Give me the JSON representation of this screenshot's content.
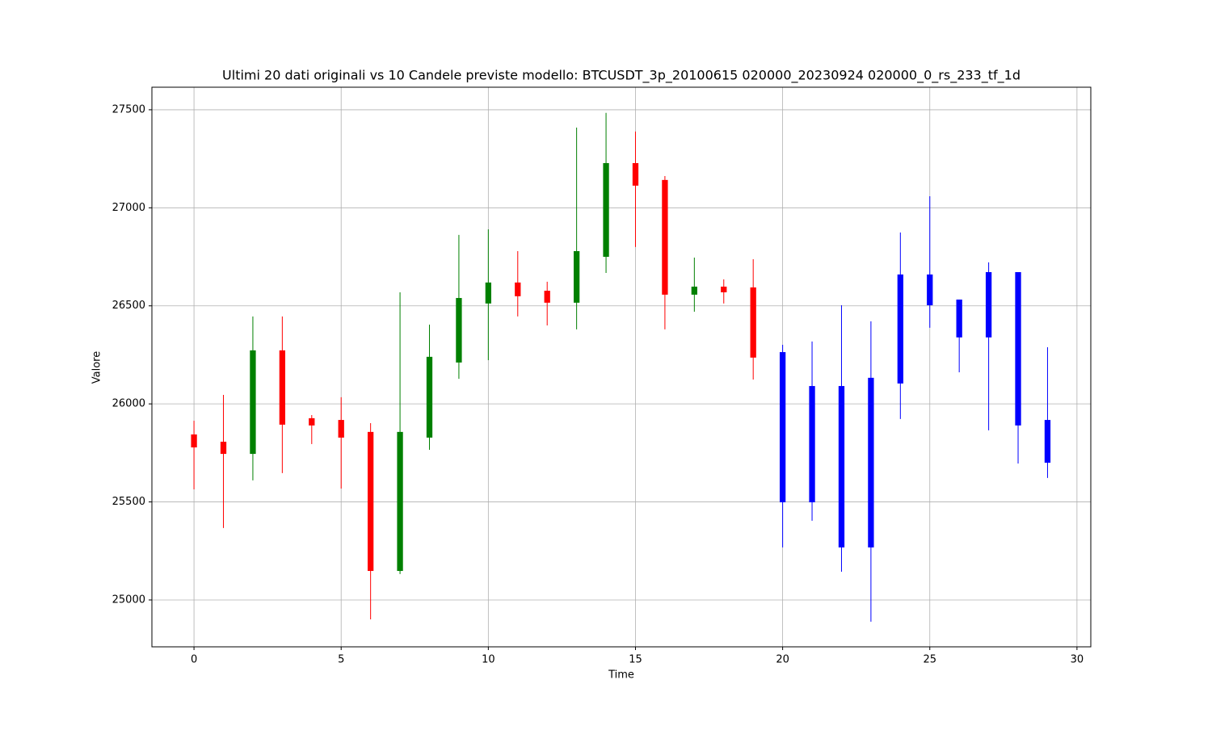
{
  "chart_data": {
    "type": "candlestick",
    "title": "Ultimi 20 dati originali vs 10 Candele previste modello: BTCUSDT_3p_20100615 020000_20230924 020000_0_rs_233_tf_1d",
    "xlabel": "Time",
    "ylabel": "Valore",
    "xlim": [
      -1.43,
      30.47
    ],
    "ylim": [
      24761,
      27615
    ],
    "xticks": [
      0,
      5,
      10,
      15,
      20,
      25,
      30
    ],
    "yticks": [
      25000,
      25500,
      26000,
      26500,
      27000,
      27500
    ],
    "grid": true,
    "original": {
      "up_color": "green",
      "down_color": "red",
      "x": [
        0,
        1,
        2,
        3,
        4,
        5,
        6,
        7,
        8,
        9,
        10,
        11,
        12,
        13,
        14,
        15,
        16,
        17,
        18,
        19
      ],
      "open": [
        25844,
        25807,
        25745,
        26273,
        25927,
        25918,
        25857,
        25148,
        25828,
        26211,
        26512,
        26619,
        26577,
        26516,
        26750,
        27228,
        27142,
        26557,
        26598,
        26594
      ],
      "high": [
        25914,
        26046,
        26446,
        26446,
        25943,
        26034,
        25902,
        26569,
        26404,
        26862,
        26890,
        26779,
        26623,
        27409,
        27484,
        27389,
        27162,
        26746,
        26635,
        26738
      ],
      "low": [
        25564,
        25367,
        25610,
        25647,
        25795,
        25568,
        24901,
        25132,
        25766,
        26128,
        26223,
        26446,
        26400,
        26380,
        26668,
        26800,
        26380,
        26470,
        26512,
        26124
      ],
      "close": [
        25778,
        25745,
        26273,
        25894,
        25890,
        25828,
        25148,
        25857,
        26240,
        26540,
        26619,
        26549,
        26516,
        26779,
        27228,
        27113,
        26557,
        26598,
        26569,
        26236
      ]
    },
    "forecast": {
      "color": "blue",
      "x": [
        20,
        21,
        22,
        23,
        24,
        25,
        26,
        27,
        28,
        29
      ],
      "open": [
        26264,
        26091,
        26091,
        26133,
        26660,
        26660,
        26532,
        26672,
        26672,
        25918
      ],
      "high": [
        26301,
        26318,
        26503,
        26421,
        26874,
        27059,
        26532,
        26722,
        26672,
        26289
      ],
      "low": [
        25268,
        25404,
        25144,
        24889,
        25923,
        26388,
        26161,
        25865,
        25696,
        25622
      ],
      "close": [
        25498,
        25498,
        25268,
        25268,
        26104,
        26503,
        26339,
        26339,
        25890,
        25700
      ]
    }
  }
}
